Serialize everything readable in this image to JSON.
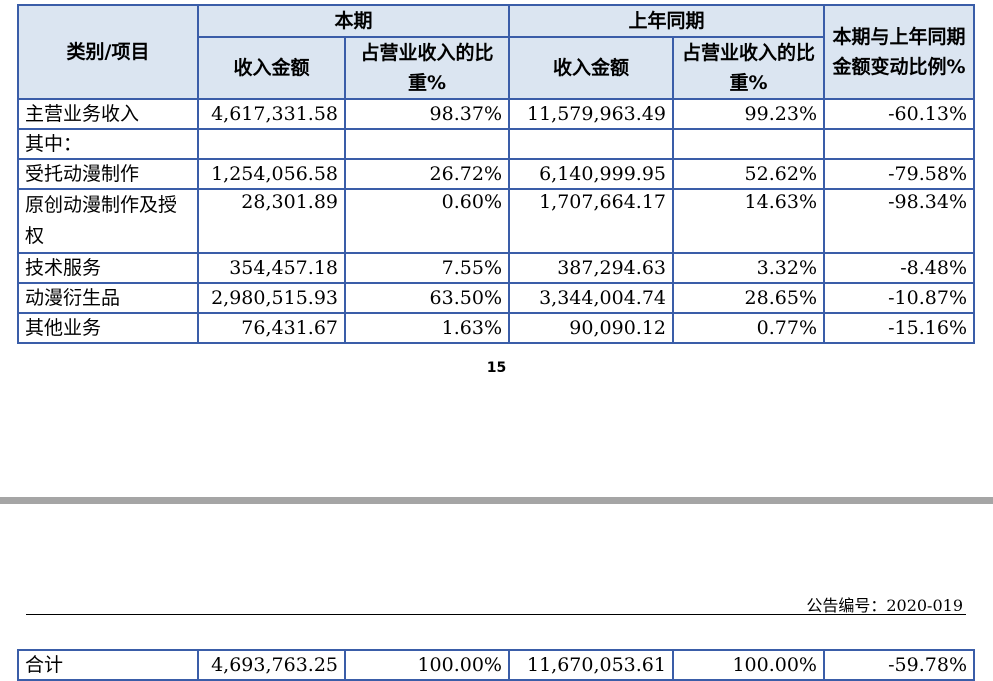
{
  "table": {
    "headers": {
      "category": "类别/项目",
      "current_period": "本期",
      "prior_period": "上年同期",
      "change": "本期与上年同期金额变动比例%",
      "revenue_amount": "收入金额",
      "revenue_share": "占营业收入的比重%"
    },
    "rows": [
      {
        "label": "主营业务收入",
        "cur_amount": "4,617,331.58",
        "cur_share": "98.37%",
        "prev_amount": "11,579,963.49",
        "prev_share": "99.23%",
        "change": "-60.13%"
      },
      {
        "label": "其中：",
        "cur_amount": "",
        "cur_share": "",
        "prev_amount": "",
        "prev_share": "",
        "change": ""
      },
      {
        "label": "受托动漫制作",
        "cur_amount": "1,254,056.58",
        "cur_share": "26.72%",
        "prev_amount": "6,140,999.95",
        "prev_share": "52.62%",
        "change": "-79.58%"
      },
      {
        "label": "原创动漫制作及授权",
        "cur_amount": "28,301.89",
        "cur_share": "0.60%",
        "prev_amount": "1,707,664.17",
        "prev_share": "14.63%",
        "change": "-98.34%"
      },
      {
        "label": "技术服务",
        "cur_amount": "354,457.18",
        "cur_share": "7.55%",
        "prev_amount": "387,294.63",
        "prev_share": "3.32%",
        "change": "-8.48%"
      },
      {
        "label": "动漫衍生品",
        "cur_amount": "2,980,515.93",
        "cur_share": "63.50%",
        "prev_amount": "3,344,004.74",
        "prev_share": "28.65%",
        "change": "-10.87%"
      },
      {
        "label": "其他业务",
        "cur_amount": "76,431.67",
        "cur_share": "1.63%",
        "prev_amount": "90,090.12",
        "prev_share": "0.77%",
        "change": "-15.16%"
      }
    ],
    "total": {
      "label": "合计",
      "cur_amount": "4,693,763.25",
      "cur_share": "100.00%",
      "prev_amount": "11,670,053.61",
      "prev_share": "100.00%",
      "change": "-59.78%"
    }
  },
  "page_number": "15",
  "announcement_number": "公告编号：2020-019",
  "colors": {
    "border": "#3a5da8",
    "header_bg": "#dbe5f1",
    "separator": "#a5a5a5"
  }
}
